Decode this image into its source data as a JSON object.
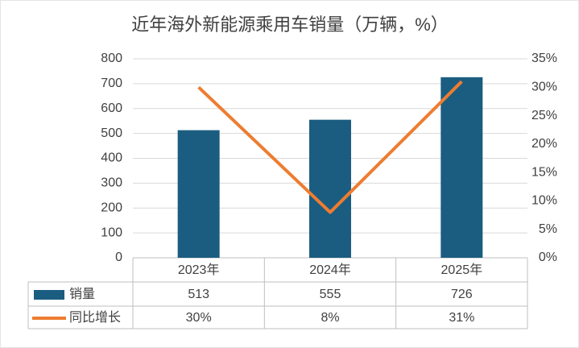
{
  "chart_data": {
    "type": "bar",
    "title": "近年海外新能源乘用车销量（万辆，%）",
    "categories": [
      "2023年",
      "2024年",
      "2025年"
    ],
    "series": [
      {
        "name": "销量",
        "type": "bar",
        "color": "#1b5d80",
        "values": [
          513,
          555,
          726
        ]
      },
      {
        "name": "同比增长",
        "type": "line",
        "axis": "y2",
        "color": "#ed7d31",
        "values": [
          30,
          8,
          31
        ],
        "value_labels": [
          "30%",
          "8%",
          "31%"
        ]
      }
    ],
    "ylim": [
      0,
      800
    ],
    "yticks": [
      0,
      100,
      200,
      300,
      400,
      500,
      600,
      700,
      800
    ],
    "y2lim": [
      0,
      35
    ],
    "y2ticks": [
      {
        "value": 0,
        "label": "0%"
      },
      {
        "value": 5,
        "label": "5%"
      },
      {
        "value": 10,
        "label": "10%"
      },
      {
        "value": 15,
        "label": "15%"
      },
      {
        "value": 20,
        "label": "20%"
      },
      {
        "value": 25,
        "label": "25%"
      },
      {
        "value": 30,
        "label": "30%"
      },
      {
        "value": 35,
        "label": "35%"
      }
    ],
    "grid": true
  }
}
